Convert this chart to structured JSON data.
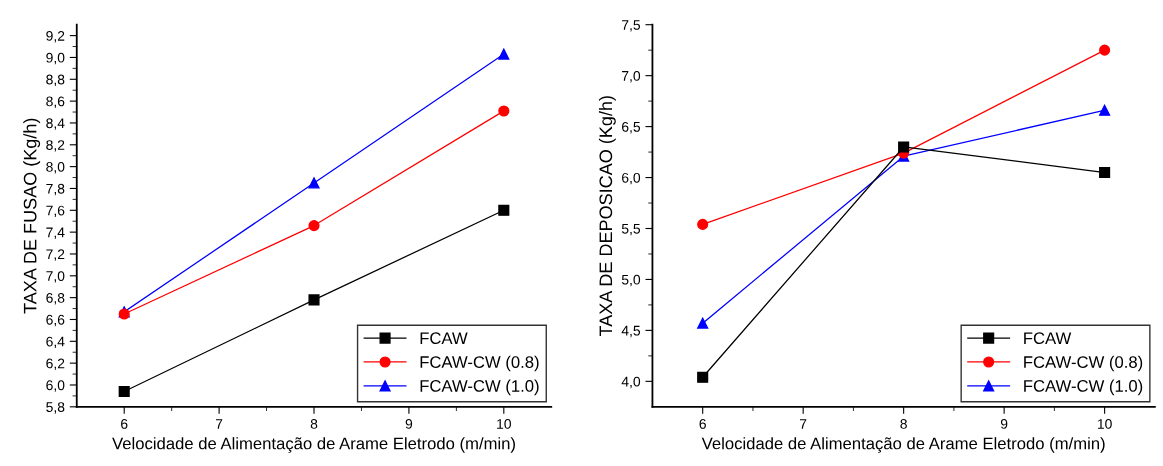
{
  "chart_data": [
    {
      "type": "line",
      "xlabel": "Velocidade de Alimentação de Arame Eletrodo (m/min)",
      "ylabel": "TAXA DE FUSAO (Kg/h)",
      "x": [
        6,
        8,
        10
      ],
      "series": [
        {
          "name": "FCAW",
          "color": "#000000",
          "marker": "square",
          "values": [
            5.94,
            6.78,
            7.6
          ]
        },
        {
          "name": "FCAW-CW (0.8)",
          "color": "#ff0000",
          "marker": "circle",
          "values": [
            6.65,
            7.46,
            8.51
          ]
        },
        {
          "name": "FCAW-CW (1.0)",
          "color": "#0000ff",
          "marker": "triangle",
          "values": [
            6.67,
            7.85,
            9.03
          ]
        }
      ],
      "xlim": [
        5.5,
        10.5
      ],
      "xticks": [
        6,
        7,
        8,
        9,
        10
      ],
      "ylim": [
        5.8,
        9.3
      ],
      "yticks": [
        {
          "value": 5.8,
          "label": "5,8"
        },
        {
          "value": 6.0,
          "label": "6,0"
        },
        {
          "value": 6.2,
          "label": "6,2"
        },
        {
          "value": 6.4,
          "label": "6,4"
        },
        {
          "value": 6.6,
          "label": "6,6"
        },
        {
          "value": 6.8,
          "label": "6,8"
        },
        {
          "value": 7.0,
          "label": "7,0"
        },
        {
          "value": 7.2,
          "label": "7,2"
        },
        {
          "value": 7.4,
          "label": "7,4"
        },
        {
          "value": 7.6,
          "label": "7,6"
        },
        {
          "value": 7.8,
          "label": "7,8"
        },
        {
          "value": 8.0,
          "label": "8,0"
        },
        {
          "value": 8.2,
          "label": "8,2"
        },
        {
          "value": 8.4,
          "label": "8,4"
        },
        {
          "value": 8.6,
          "label": "8,6"
        },
        {
          "value": 8.8,
          "label": "8,8"
        },
        {
          "value": 9.0,
          "label": "9,0"
        },
        {
          "value": 9.2,
          "label": "9,2"
        }
      ],
      "legend": "bottom right",
      "grid": false
    },
    {
      "type": "line",
      "xlabel": "Velocidade de Alimentação de Arame Eletrodo (m/min)",
      "ylabel": "TAXA DE DEPOSICAO (Kg/h)",
      "x": [
        6,
        8,
        10
      ],
      "series": [
        {
          "name": "FCAW",
          "color": "#000000",
          "marker": "square",
          "values": [
            4.04,
            6.3,
            6.05
          ]
        },
        {
          "name": "FCAW-CW (0.8)",
          "color": "#ff0000",
          "marker": "circle",
          "values": [
            5.54,
            6.24,
            7.25
          ]
        },
        {
          "name": "FCAW-CW (1.0)",
          "color": "#0000ff",
          "marker": "triangle",
          "values": [
            4.57,
            6.21,
            6.66
          ]
        }
      ],
      "xlim": [
        5.5,
        10.5
      ],
      "xticks": [
        6,
        7,
        8,
        9,
        10
      ],
      "ylim": [
        3.75,
        7.5
      ],
      "yticks": [
        {
          "value": 4.0,
          "label": "4,0"
        },
        {
          "value": 4.5,
          "label": "4,5"
        },
        {
          "value": 5.0,
          "label": "5,0"
        },
        {
          "value": 5.5,
          "label": "5,5"
        },
        {
          "value": 6.0,
          "label": "6,0"
        },
        {
          "value": 6.5,
          "label": "6,5"
        },
        {
          "value": 7.0,
          "label": "7,0"
        },
        {
          "value": 7.5,
          "label": "7,5"
        }
      ],
      "legend": "bottom right",
      "grid": false
    }
  ]
}
